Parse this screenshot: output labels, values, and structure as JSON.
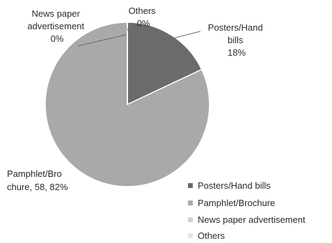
{
  "chart_data": {
    "type": "pie",
    "categories": [
      "Posters/Hand bills",
      "Pamphlet/Brochure",
      "News paper advertisement",
      "Others"
    ],
    "values": [
      18,
      82,
      0,
      0
    ],
    "value_unit": "%",
    "slice_colors": [
      "#6b6b6b",
      "#a9a9a9",
      "#d4d4d4",
      "#efefef"
    ],
    "data_labels": [
      [
        "Posters/Hand",
        "bills",
        "18%"
      ],
      [
        "Pamphlet/Bro",
        "chure, 58, 82%"
      ],
      [
        "News paper",
        "advertisement",
        "0%"
      ],
      [
        "Others",
        "0%"
      ]
    ],
    "legend": {
      "placement": "bottom-right",
      "items": [
        "Posters/Hand bills",
        "Pamphlet/Brochure",
        "News paper advertisement",
        "Others"
      ]
    }
  }
}
